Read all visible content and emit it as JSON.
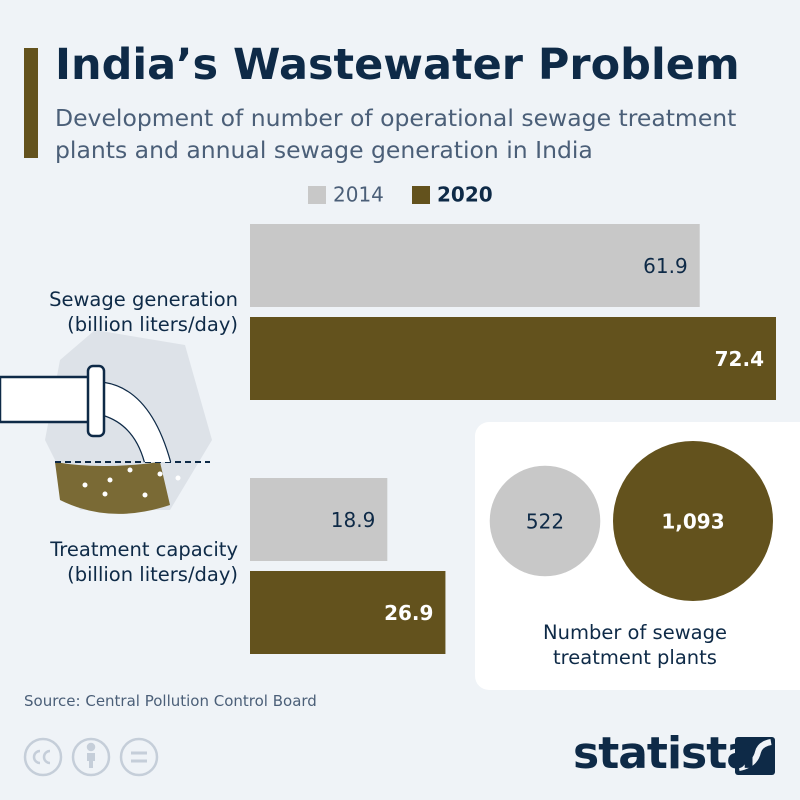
{
  "chart_data": [
    {
      "type": "hbar",
      "title": "India’s Wastewater Problem",
      "subtitle": "Development of number of operational sewage treatment plants and annual sewage generation in India",
      "categories": [
        "Sewage generation (billion liters/day)",
        "Treatment capacity (billion liters/day)"
      ],
      "series": [
        {
          "name": "2014",
          "color": "#c8c8c8",
          "values": [
            61.9,
            18.9
          ]
        },
        {
          "name": "2020",
          "color": "#63521d",
          "values": [
            72.4,
            26.9
          ]
        }
      ]
    },
    {
      "type": "bubble",
      "title": "Number of sewage treatment plants",
      "values": [
        522,
        1093
      ],
      "value_labels": [
        "522",
        "1,093"
      ],
      "colors": [
        "#c8c8c8",
        "#63521d"
      ]
    }
  ],
  "source": "Source: Central Pollution Control Board",
  "logo": "statista"
}
